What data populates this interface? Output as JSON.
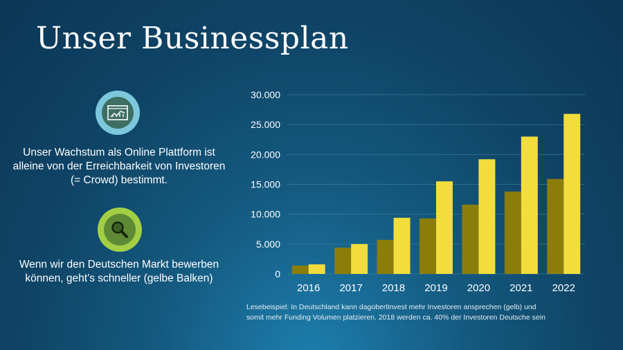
{
  "slide": {
    "title": "Unser Businessplan",
    "note1": "Unser Wachstum als Online Plattform ist alleine von der Erreichbarkeit von Investoren (= Crowd) bestimmt.",
    "note2": "Wenn wir den Deutschen Markt bewerben können, geht’s schneller (gelbe Balken)",
    "icon1": "chart-icon",
    "icon2": "search-icon",
    "caption": "Lesebeispiel: In Deutschland kann dagobertinvest mehr Investoren ansprechen (gelb) und somit mehr Funding Volumen platzieren. 2018 werden ca. 40% der Investoren Deutsche sein"
  },
  "colors": {
    "olive": "#8b7d0a",
    "yellow": "#f2dd3c",
    "icon1_outer": "#7cc7dc",
    "icon1_inner": "#3e6f62",
    "icon2_outer": "#a3cf45",
    "icon2_inner": "#5f8a35"
  },
  "chart_data": {
    "type": "bar",
    "categories": [
      "2016",
      "2017",
      "2018",
      "2019",
      "2020",
      "2021",
      "2022"
    ],
    "series": [
      {
        "values": [
          1400,
          4400,
          5700,
          9300,
          11600,
          13800,
          15900
        ]
      },
      {
        "values": [
          1600,
          5000,
          9400,
          15500,
          19200,
          23000,
          26800
        ]
      }
    ],
    "yticks": [
      "0",
      "5.000",
      "10.000",
      "15.000",
      "20.000",
      "25.000",
      "30.000"
    ],
    "ylim": [
      0,
      30000
    ],
    "grid": true
  }
}
